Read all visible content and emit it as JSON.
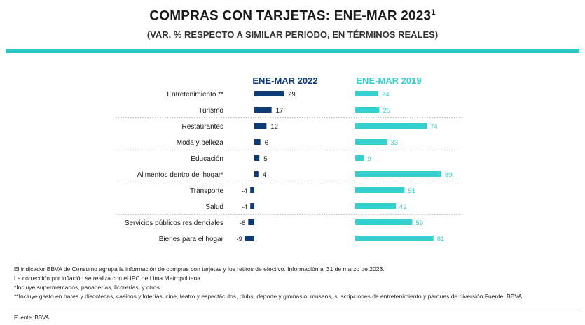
{
  "title": "COMPRAS CON TARJETAS: ENE-MAR 2023",
  "title_sup": "1",
  "subtitle": "(VAR. % RESPECTO A SIMILAR PERIODO, EN TÉRMINOS REALES)",
  "colors": {
    "accent": "#2dc6c6",
    "dark": "#0d3b78",
    "teal": "#34cfcf"
  },
  "chart_data": {
    "type": "bar",
    "orientation": "horizontal",
    "categories": [
      "Entretenimiento **",
      "Turismo",
      "Restaurantes",
      "Moda y belleza",
      "Educación",
      "Alimentos dentro del hogar*",
      "Transporte",
      "Salud",
      "Servicios públicos residenciales",
      "Bienes para el hogar"
    ],
    "series": [
      {
        "name": "ENE-MAR 2022",
        "color": "#0d3b78",
        "values": [
          29,
          17,
          12,
          6,
          5,
          4,
          -4,
          -4,
          -6,
          -9
        ]
      },
      {
        "name": "ENE-MAR 2019",
        "color": "#34cfcf",
        "values": [
          24,
          25,
          74,
          33,
          9,
          89,
          51,
          42,
          59,
          81
        ]
      }
    ],
    "separators_after": [
      1,
      3,
      5,
      7
    ]
  },
  "notes": [
    "El indicador BBVA de Consumo agrupa la información de compras con tarjetas y los retiros de efectivo. Información al 31 de marzo de 2023.",
    "La corrección por inflación se realiza con el IPC de Lima Metropolitana.",
    "*Incluye supermercados, panaderías, licorerías, y otros.",
    "**Incluye gasto en bares y discotecas, casinos y loterías, cine, teatro y espectáculos, clubs, deporte y gimnasio, museos, suscripciones de entretenimiento y parques de diversión.Fuente: BBVA"
  ],
  "source": "Fuente: BBVA"
}
